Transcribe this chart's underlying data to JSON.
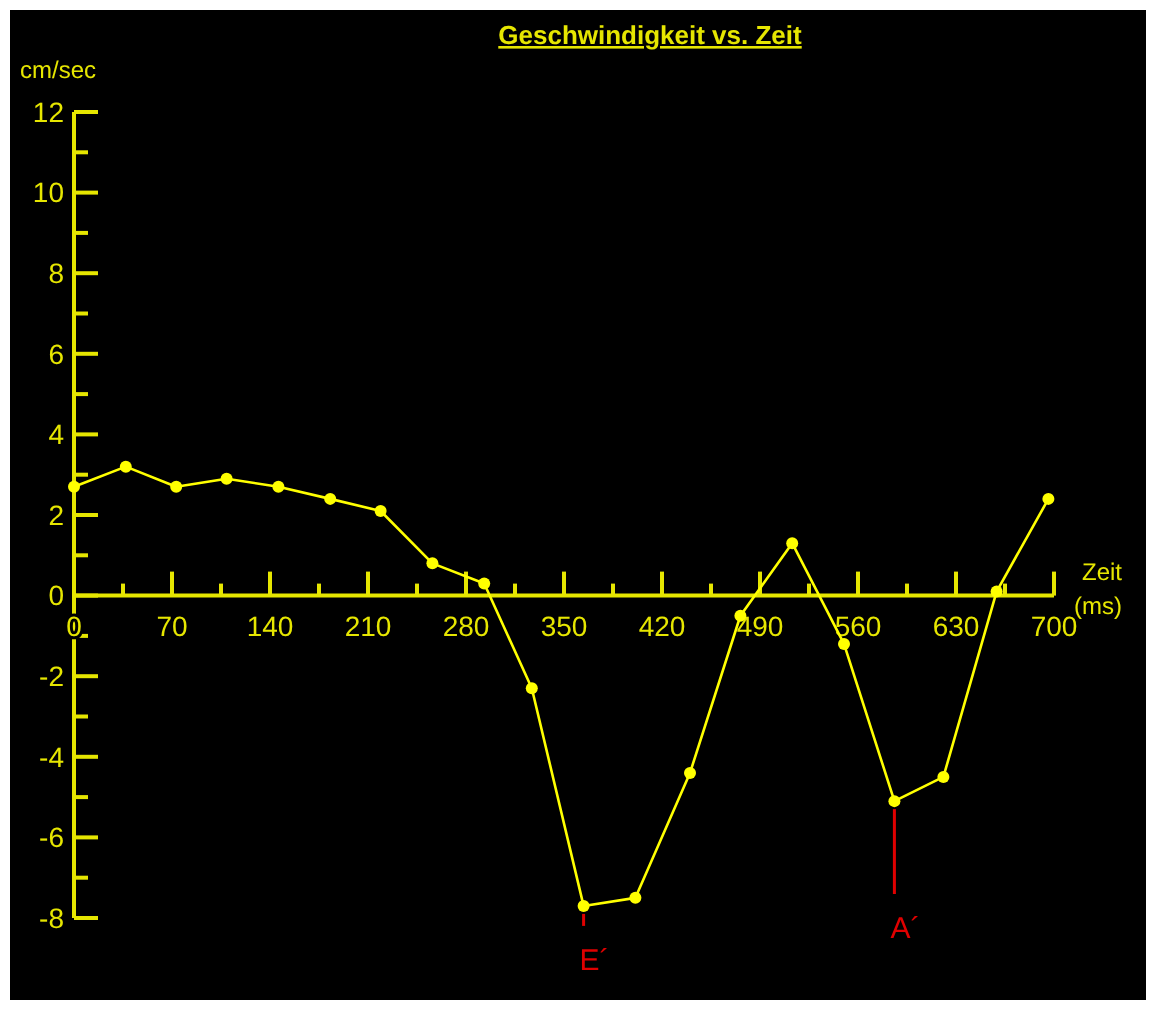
{
  "chart_data": {
    "type": "line",
    "title": "Geschwindigkeit vs. Zeit",
    "xlabel": "Zeit (ms)",
    "ylabel": "cm/sec",
    "xlim": [
      0,
      700
    ],
    "ylim": [
      -8,
      12
    ],
    "xticks": [
      0,
      {
        "value": 35,
        "label": null
      },
      70,
      {
        "value": 105,
        "label": null
      },
      140,
      {
        "value": 175,
        "label": null
      },
      210,
      {
        "value": 245,
        "label": null
      },
      280,
      {
        "value": 315,
        "label": null
      },
      350,
      {
        "value": 385,
        "label": null
      },
      420,
      {
        "value": 455,
        "label": null
      },
      490,
      {
        "value": 525,
        "label": null
      },
      560,
      {
        "value": 595,
        "label": null
      },
      630,
      {
        "value": 665,
        "label": null
      },
      700
    ],
    "yticks": [
      -8,
      {
        "value": -7,
        "label": null
      },
      -6,
      {
        "value": -5,
        "label": null
      },
      -4,
      {
        "value": -3,
        "label": null
      },
      -2,
      {
        "value": -1,
        "label": null
      },
      0,
      {
        "value": 1,
        "label": null
      },
      2,
      {
        "value": 3,
        "label": null
      },
      4,
      {
        "value": 5,
        "label": null
      },
      6,
      {
        "value": 7,
        "label": null
      },
      8,
      {
        "value": 9,
        "label": null
      },
      10,
      {
        "value": 11,
        "label": null
      },
      12
    ],
    "grid": false,
    "marker": "circle",
    "line_style": "solid",
    "series": [
      {
        "color": "#ffff00",
        "x": [
          0,
          37,
          73,
          109,
          146,
          183,
          219,
          256,
          293,
          327,
          364,
          401,
          440,
          476,
          513,
          550,
          586,
          621,
          659,
          696
        ],
        "values": [
          2.7,
          3.2,
          2.7,
          2.9,
          2.7,
          2.4,
          2.1,
          0.8,
          0.3,
          -2.3,
          -7.7,
          -7.5,
          -4.4,
          -0.5,
          1.3,
          -1.2,
          -5.1,
          -4.5,
          0.1,
          2.4
        ]
      }
    ],
    "annotations": [
      {
        "text": "E´",
        "x": 364,
        "y": -7.7
      },
      {
        "text": "A´",
        "x": 586,
        "y": -5.1
      }
    ]
  }
}
